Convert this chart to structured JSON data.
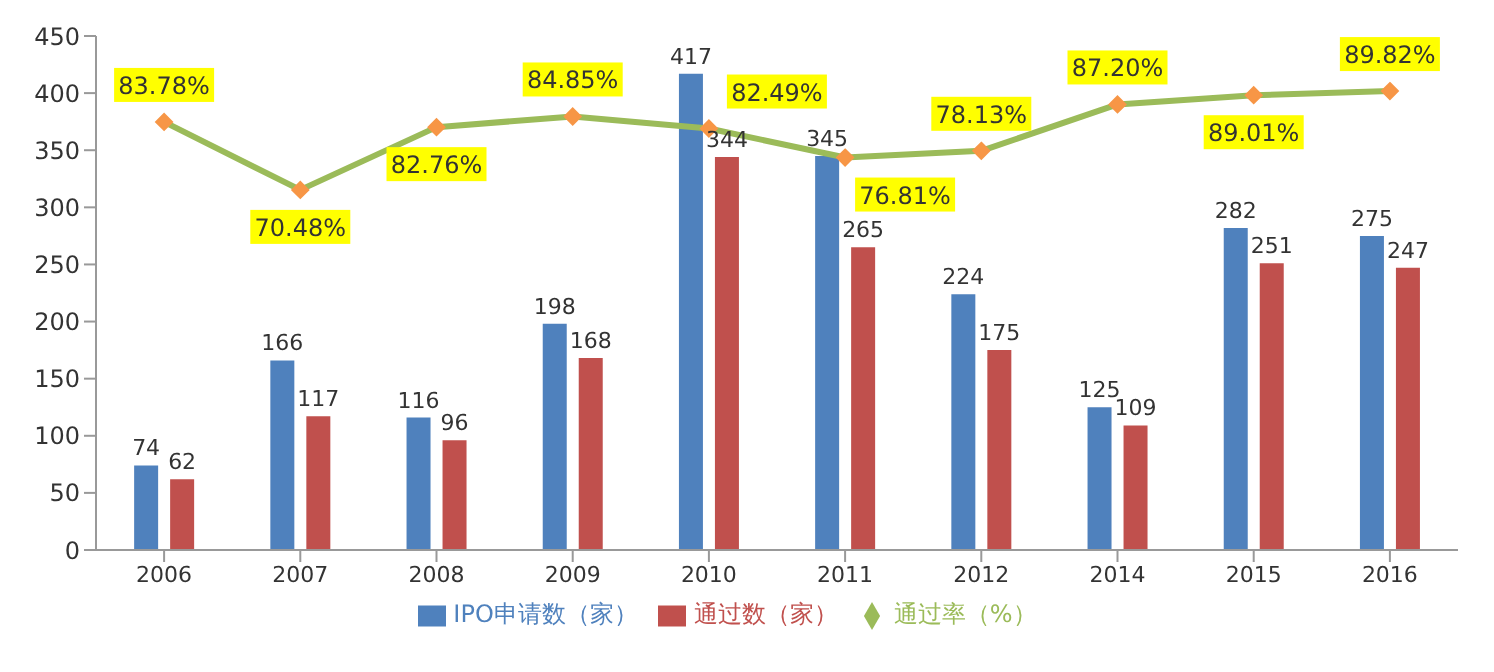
{
  "chart_data": {
    "type": "bar",
    "categories": [
      "2006",
      "2007",
      "2008",
      "2009",
      "2010",
      "2011",
      "2012",
      "2014",
      "2015",
      "2016"
    ],
    "series": [
      {
        "name": "IPO申请数（家）",
        "color": "#4f81bd",
        "values": [
          74,
          166,
          116,
          198,
          417,
          345,
          224,
          125,
          282,
          275
        ]
      },
      {
        "name": "通过数（家）",
        "color": "#c0504d",
        "values": [
          62,
          117,
          96,
          168,
          344,
          265,
          175,
          109,
          251,
          247
        ]
      },
      {
        "name": "通过率（%）",
        "type": "line",
        "axis": "y2",
        "color": "#9bbb59",
        "marker": "diamond",
        "values": [
          83.78,
          70.48,
          82.76,
          84.85,
          82.49,
          76.81,
          78.13,
          87.2,
          89.01,
          89.82
        ],
        "value_labels": [
          "83.78%",
          "70.48%",
          "82.76%",
          "84.85%",
          "82.49%",
          "76.81%",
          "78.13%",
          "87.20%",
          "89.01%",
          "89.82%"
        ]
      }
    ],
    "ylim": [
      0,
      450
    ],
    "yticks": [
      0,
      50,
      100,
      150,
      200,
      250,
      300,
      350,
      400,
      450
    ],
    "legend": "bottom",
    "data_labels": true
  }
}
